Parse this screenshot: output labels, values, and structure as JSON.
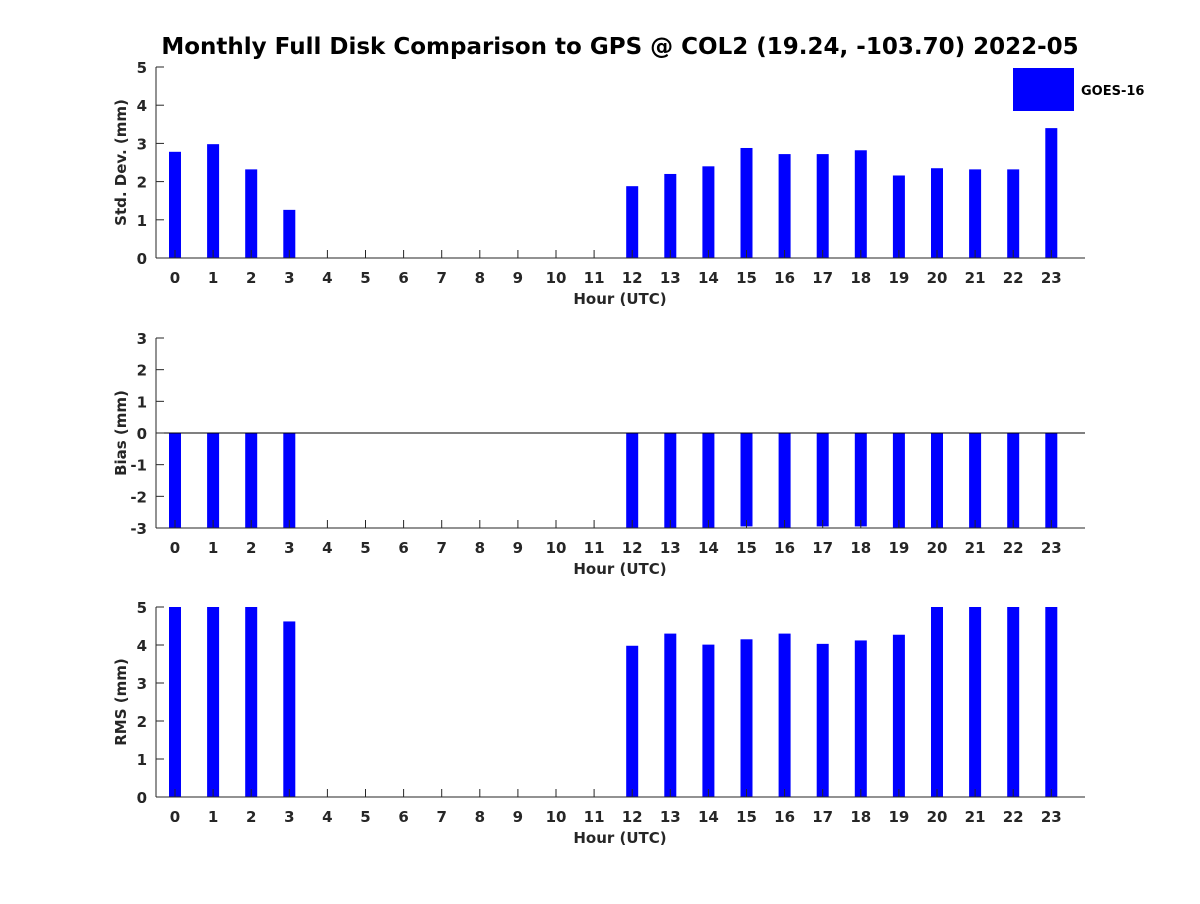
{
  "title": "Monthly Full Disk Comparison to GPS @ COL2 (19.24, -103.70) 2022-05",
  "legend": {
    "label": "GOES-16",
    "color": "#0000ff"
  },
  "colors": {
    "bar": "#0000ff",
    "axis": "#262626"
  },
  "chart_data": [
    {
      "type": "bar",
      "categories": [
        "0",
        "1",
        "2",
        "3",
        "4",
        "5",
        "6",
        "7",
        "8",
        "9",
        "10",
        "11",
        "12",
        "13",
        "14",
        "15",
        "16",
        "17",
        "18",
        "19",
        "20",
        "21",
        "22",
        "23"
      ],
      "series": [
        {
          "name": "GOES-16",
          "values": [
            2.78,
            2.98,
            2.32,
            1.26,
            null,
            null,
            null,
            null,
            null,
            null,
            null,
            null,
            1.88,
            2.2,
            2.4,
            2.88,
            2.72,
            2.72,
            2.82,
            2.16,
            2.35,
            2.32,
            2.32,
            3.4
          ]
        }
      ],
      "xlabel": "Hour (UTC)",
      "ylabel": "Std. Dev. (mm)",
      "ylim": [
        0,
        5
      ],
      "yticks": [
        "0",
        "1",
        "2",
        "3",
        "4",
        "5"
      ],
      "grid": false,
      "legend": "top-right"
    },
    {
      "type": "bar",
      "categories": [
        "0",
        "1",
        "2",
        "3",
        "4",
        "5",
        "6",
        "7",
        "8",
        "9",
        "10",
        "11",
        "12",
        "13",
        "14",
        "15",
        "16",
        "17",
        "18",
        "19",
        "20",
        "21",
        "22",
        "23"
      ],
      "series": [
        {
          "name": "GOES-16",
          "values": [
            -3,
            -3,
            -3,
            -3,
            null,
            null,
            null,
            null,
            null,
            null,
            null,
            null,
            -3,
            -3,
            -3,
            -2.95,
            -3,
            -2.95,
            -2.95,
            -3,
            -3,
            -3,
            -3,
            -3
          ]
        }
      ],
      "xlabel": "Hour (UTC)",
      "ylabel": "Bias (mm)",
      "ylim": [
        -3,
        3
      ],
      "yticks": [
        "-3",
        "-2",
        "-1",
        "0",
        "1",
        "2",
        "3"
      ],
      "grid": false,
      "zero_line": true
    },
    {
      "type": "bar",
      "categories": [
        "0",
        "1",
        "2",
        "3",
        "4",
        "5",
        "6",
        "7",
        "8",
        "9",
        "10",
        "11",
        "12",
        "13",
        "14",
        "15",
        "16",
        "17",
        "18",
        "19",
        "20",
        "21",
        "22",
        "23"
      ],
      "series": [
        {
          "name": "GOES-16",
          "values": [
            5,
            5,
            5,
            4.62,
            null,
            null,
            null,
            null,
            null,
            null,
            null,
            null,
            3.98,
            4.3,
            4.01,
            4.15,
            4.3,
            4.03,
            4.12,
            4.27,
            5,
            5,
            5,
            5
          ]
        }
      ],
      "xlabel": "Hour (UTC)",
      "ylabel": "RMS (mm)",
      "ylim": [
        0,
        5
      ],
      "yticks": [
        "0",
        "1",
        "2",
        "3",
        "4",
        "5"
      ],
      "grid": false
    }
  ]
}
